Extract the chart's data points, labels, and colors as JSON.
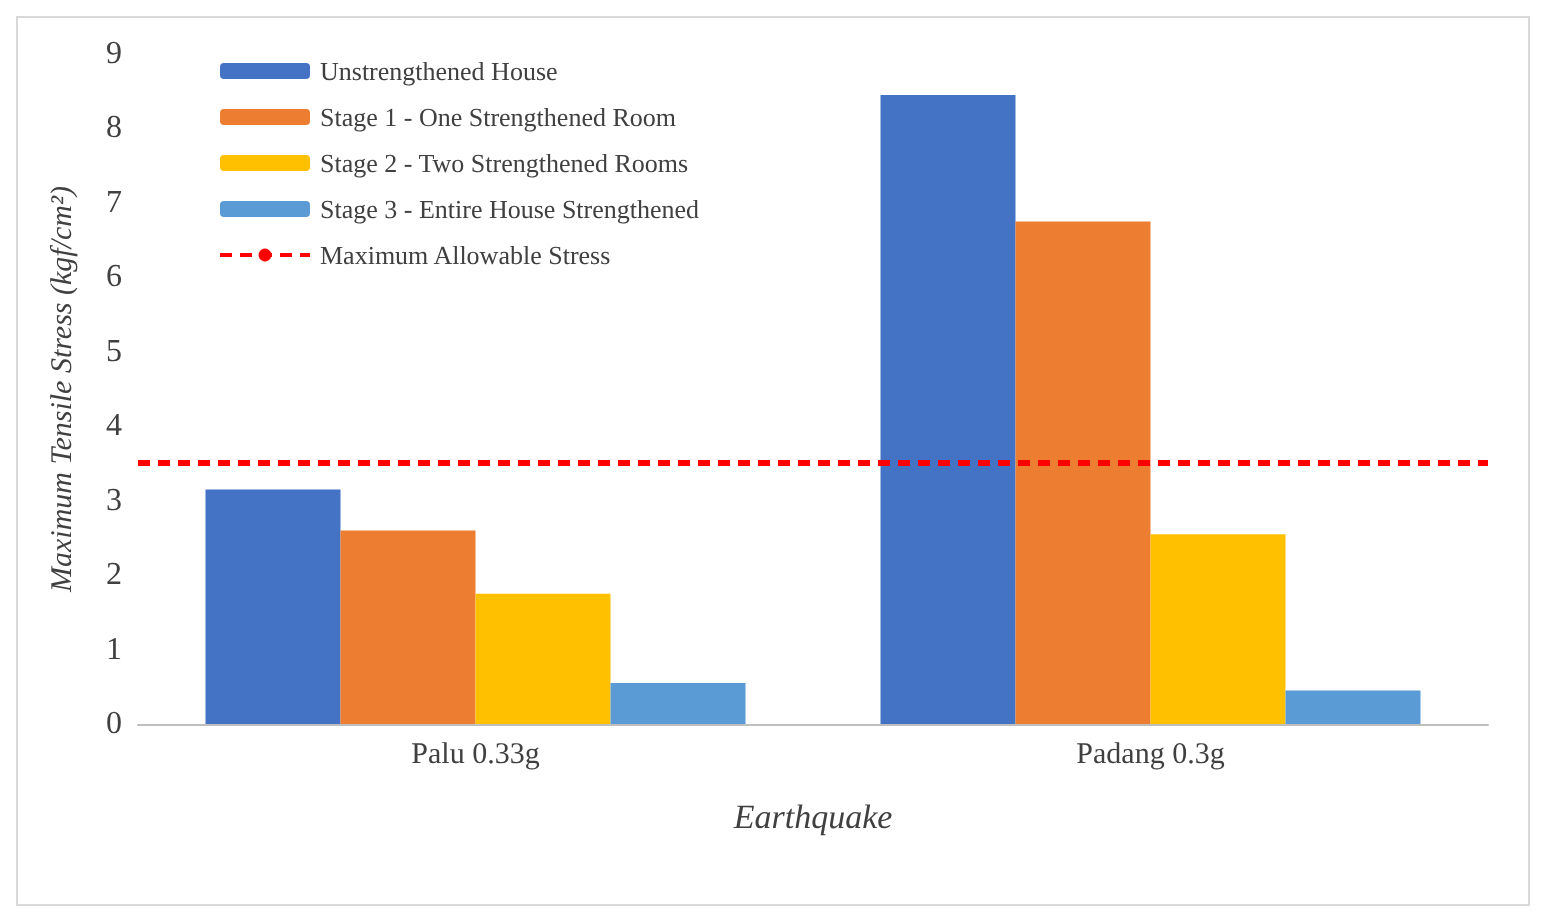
{
  "chart_data": {
    "type": "bar",
    "xlabel": "Earthquake",
    "ylabel": "Maximum Tensile Stress (kgf/cm²)",
    "categories": [
      "Palu 0.33g",
      "Padang 0.3g"
    ],
    "series": [
      {
        "name": "Unstrengthened House",
        "color": "#4472c4",
        "values": [
          3.15,
          8.45
        ]
      },
      {
        "name": "Stage 1 - One Strengthened Room",
        "color": "#ed7d31",
        "values": [
          2.6,
          6.75
        ]
      },
      {
        "name": "Stage 2 - Two Strengthened Rooms",
        "color": "#ffc000",
        "values": [
          1.75,
          2.55
        ]
      },
      {
        "name": "Stage 3 - Entire House Strengthened",
        "color": "#5b9bd5",
        "values": [
          0.55,
          0.45
        ]
      }
    ],
    "ref_lines": [
      {
        "axis": "y",
        "value": 3.5,
        "label": "Maximum Allowable Stress",
        "color": "#ff0000",
        "line_style": "dashed"
      }
    ],
    "ylim": [
      0,
      9
    ],
    "yticks": [
      0,
      1,
      2,
      3,
      4,
      5,
      6,
      7,
      8,
      9
    ],
    "grid": false,
    "legend": "top left"
  }
}
